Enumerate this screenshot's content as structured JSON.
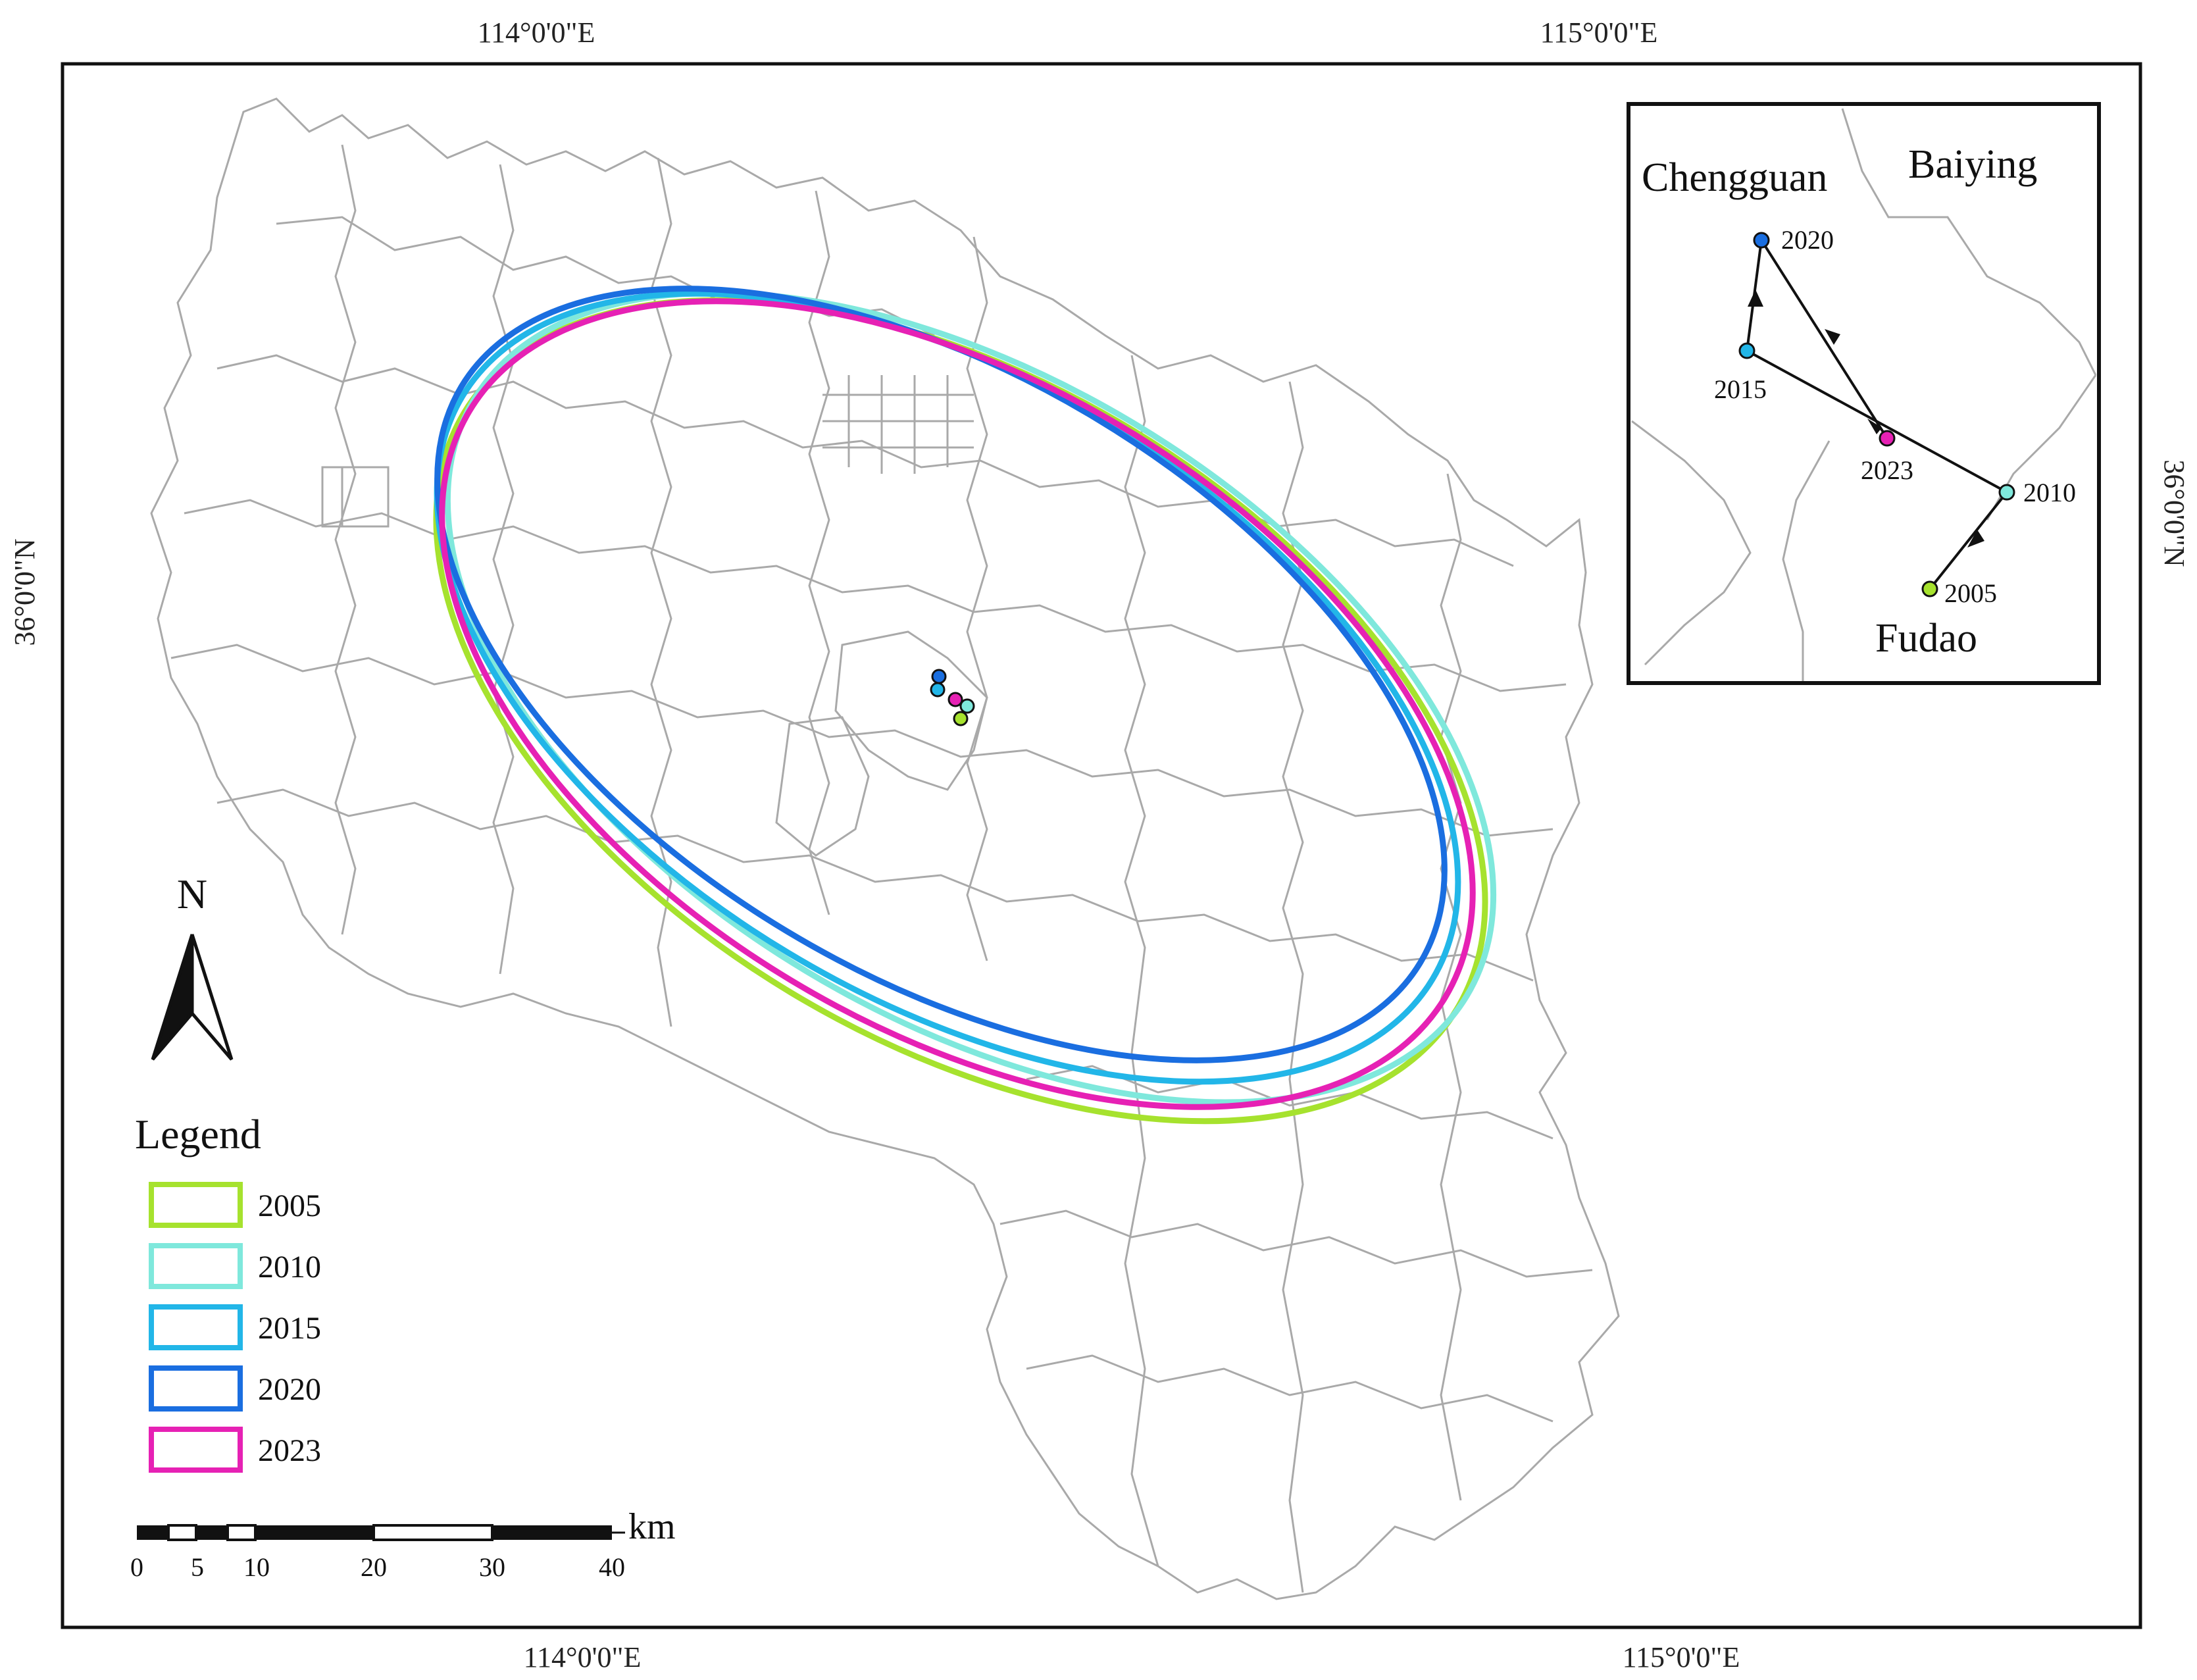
{
  "graticule": {
    "top": [
      "114°0'0\"E",
      "115°0'0\"E"
    ],
    "bottom": [
      "114°0'0\"E",
      "115°0'0\"E"
    ],
    "left": "36°0'0\"N",
    "right": "36°0'0\"N"
  },
  "colors": {
    "2005": "#a6e22e",
    "2010": "#7fe8dc",
    "2015": "#22b6e8",
    "2020": "#1a6ee0",
    "2023": "#e621b4"
  },
  "legend": {
    "title": "Legend",
    "items": [
      {
        "year": "2005",
        "label": "2005"
      },
      {
        "year": "2010",
        "label": "2010"
      },
      {
        "year": "2015",
        "label": "2015"
      },
      {
        "year": "2020",
        "label": "2020"
      },
      {
        "year": "2023",
        "label": "2023"
      }
    ]
  },
  "north_arrow": {
    "label": "N",
    "icon": "north-arrow-icon"
  },
  "scale_bar": {
    "unit": "km",
    "ticks": [
      "0",
      "5",
      "10",
      "20",
      "30",
      "40"
    ]
  },
  "inset": {
    "places": [
      "Chengguan",
      "Baiying",
      "Fudao"
    ],
    "centroids": [
      {
        "year": "2020",
        "label": "2020"
      },
      {
        "year": "2015",
        "label": "2015"
      },
      {
        "year": "2023",
        "label": "2023"
      },
      {
        "year": "2010",
        "label": "2010"
      },
      {
        "year": "2005",
        "label": "2005"
      }
    ],
    "path_order": [
      "2005",
      "2010",
      "2015",
      "2020",
      "2023"
    ]
  }
}
